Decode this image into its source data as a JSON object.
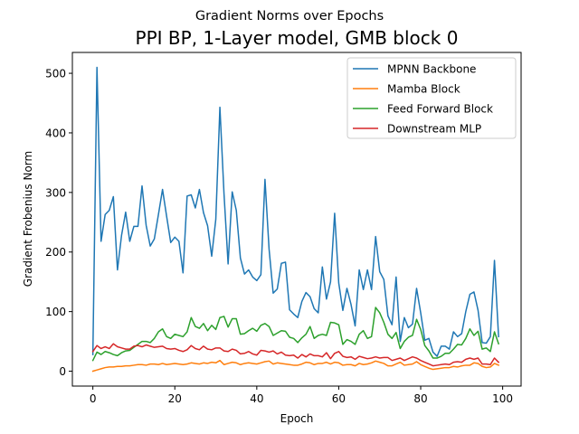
{
  "chart_data": {
    "type": "line",
    "suptitle": "Gradient Norms over Epochs",
    "title": "PPI BP, 1-Layer model, GMB block 0",
    "xlabel": "Epoch",
    "ylabel": "Gradient Frobenius Norm",
    "xlim": [
      -5,
      104.5
    ],
    "ylim": [
      -25,
      535
    ],
    "xticks": [
      0,
      20,
      40,
      60,
      80,
      100
    ],
    "yticks": [
      0,
      100,
      200,
      300,
      400,
      500
    ],
    "xtick_labels": [
      "0",
      "20",
      "40",
      "60",
      "80",
      "100"
    ],
    "ytick_labels": [
      "0",
      "100",
      "200",
      "300",
      "400",
      "500"
    ],
    "grid": false,
    "legend_position": "upper right",
    "series": [
      {
        "name": "MPNN Backbone",
        "color": "#1f77b4",
        "values": [
          28,
          510,
          218,
          263,
          270,
          293,
          170,
          228,
          267,
          218,
          243,
          243,
          311,
          245,
          210,
          222,
          263,
          305,
          260,
          216,
          225,
          218,
          165,
          294,
          296,
          274,
          305,
          266,
          244,
          193,
          255,
          443,
          298,
          180,
          301,
          270,
          190,
          163,
          170,
          158,
          152,
          162,
          322,
          205,
          131,
          138,
          181,
          183,
          103,
          96,
          90,
          117,
          132,
          125,
          105,
          98,
          175,
          121,
          150,
          265,
          148,
          102,
          139,
          112,
          76,
          170,
          137,
          170,
          137,
          226,
          167,
          154,
          93,
          78,
          158,
          50,
          90,
          73,
          79,
          139,
          98,
          52,
          55,
          32,
          25,
          42,
          42,
          37,
          66,
          58,
          63,
          100,
          129,
          133,
          102,
          48,
          47,
          58,
          186,
          58
        ]
      },
      {
        "name": "Mamba Block",
        "color": "#ff7f0e",
        "values": [
          0,
          2,
          4,
          6,
          7,
          7,
          8,
          8,
          9,
          9,
          10,
          11,
          11,
          10,
          12,
          12,
          11,
          13,
          11,
          12,
          13,
          12,
          11,
          12,
          14,
          13,
          12,
          14,
          13,
          15,
          14,
          18,
          11,
          13,
          15,
          14,
          11,
          13,
          14,
          13,
          12,
          14,
          16,
          17,
          12,
          14,
          13,
          12,
          11,
          10,
          10,
          12,
          15,
          14,
          11,
          13,
          13,
          15,
          12,
          15,
          14,
          10,
          11,
          11,
          9,
          13,
          11,
          12,
          14,
          17,
          15,
          13,
          9,
          9,
          12,
          15,
          10,
          11,
          12,
          16,
          11,
          8,
          5,
          3,
          4,
          5,
          6,
          6,
          8,
          7,
          9,
          10,
          10,
          14,
          13,
          8,
          6,
          7,
          13,
          10
        ]
      },
      {
        "name": "Feed Forward Block",
        "color": "#2ca02c",
        "values": [
          18,
          32,
          28,
          33,
          31,
          28,
          26,
          31,
          34,
          35,
          40,
          45,
          50,
          50,
          48,
          55,
          66,
          71,
          58,
          55,
          62,
          60,
          58,
          66,
          90,
          75,
          72,
          80,
          68,
          77,
          70,
          90,
          92,
          74,
          88,
          88,
          62,
          63,
          68,
          72,
          67,
          77,
          80,
          75,
          60,
          64,
          68,
          67,
          57,
          55,
          48,
          56,
          62,
          75,
          55,
          60,
          62,
          60,
          82,
          81,
          78,
          45,
          53,
          50,
          45,
          62,
          68,
          55,
          58,
          107,
          98,
          82,
          62,
          55,
          65,
          38,
          50,
          57,
          60,
          87,
          70,
          43,
          34,
          22,
          22,
          25,
          30,
          30,
          37,
          45,
          44,
          55,
          71,
          60,
          67,
          37,
          39,
          33,
          66,
          46
        ]
      },
      {
        "name": "Downstream MLP",
        "color": "#d62728",
        "values": [
          33,
          43,
          38,
          41,
          38,
          46,
          41,
          39,
          37,
          37,
          42,
          43,
          41,
          44,
          42,
          40,
          41,
          42,
          38,
          37,
          38,
          35,
          33,
          36,
          43,
          38,
          36,
          42,
          37,
          36,
          39,
          39,
          34,
          33,
          37,
          35,
          29,
          30,
          33,
          29,
          27,
          35,
          34,
          32,
          34,
          29,
          32,
          27,
          26,
          27,
          22,
          28,
          24,
          29,
          26,
          26,
          24,
          31,
          21,
          30,
          33,
          25,
          23,
          24,
          20,
          25,
          23,
          21,
          22,
          24,
          22,
          23,
          23,
          18,
          20,
          22,
          18,
          21,
          24,
          22,
          18,
          15,
          12,
          9,
          10,
          11,
          12,
          11,
          15,
          16,
          15,
          20,
          22,
          20,
          22,
          12,
          12,
          11,
          22,
          15
        ]
      }
    ]
  }
}
